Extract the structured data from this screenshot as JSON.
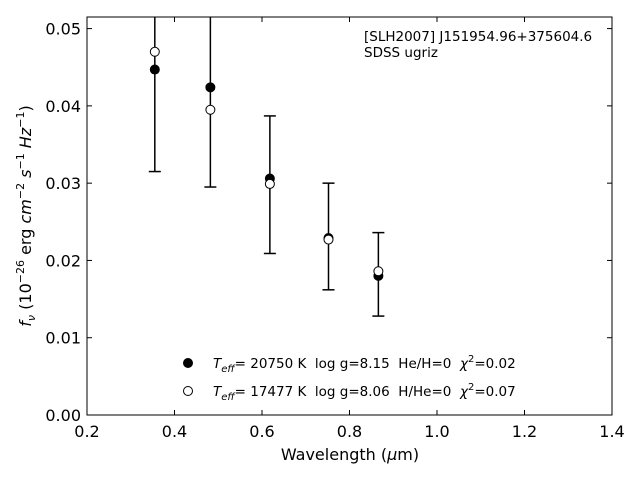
{
  "chart_data": {
    "type": "scatter",
    "title": "",
    "annotation_lines": [
      "[SLH2007] J151954.96+375604.6",
      "SDSS ugriz"
    ],
    "xlabel": {
      "prefix": "Wavelength (",
      "mu": "μ",
      "suffix": "m)"
    },
    "ylabel": {
      "pre": "f",
      "sub": "ν",
      "open": " (10",
      "exp1": "−26",
      "mid1": " erg ",
      "cm": "cm",
      "exp2": "−2",
      "s": " s",
      "exp3": "−1",
      "hz": " Hz",
      "exp4": "−1",
      "close": ")"
    },
    "xlim": [
      0.2,
      1.4
    ],
    "ylim": [
      0.0,
      0.0515
    ],
    "xticks": [
      "0.2",
      "0.4",
      "0.6",
      "0.8",
      "1.0",
      "1.2",
      "1.4"
    ],
    "xtick_values": [
      0.2,
      0.4,
      0.6,
      0.8,
      1.0,
      1.2,
      1.4
    ],
    "yticks": [
      "0.00",
      "0.01",
      "0.02",
      "0.03",
      "0.04",
      "0.05"
    ],
    "ytick_values": [
      0.0,
      0.01,
      0.02,
      0.03,
      0.04,
      0.05
    ],
    "grid": false,
    "legend_placement": "lower-center",
    "errorbars": [
      {
        "x": 0.355,
        "low": 0.0315,
        "high": 0.0515
      },
      {
        "x": 0.482,
        "low": 0.0295,
        "high": 0.0515
      },
      {
        "x": 0.618,
        "low": 0.0209,
        "high": 0.0387
      },
      {
        "x": 0.752,
        "low": 0.0162,
        "high": 0.03
      },
      {
        "x": 0.866,
        "low": 0.0128,
        "high": 0.0236
      }
    ],
    "series": [
      {
        "marker": "filled",
        "color": "#000000",
        "legend": {
          "t": "T",
          "sub": "eff",
          "rest": "= 20750 K  log g=8.15  He/H=0  ",
          "chi": "χ",
          "chisup": "2",
          "val": "=0.02"
        },
        "x": [
          0.355,
          0.482,
          0.618,
          0.752,
          0.866
        ],
        "y": [
          0.0447,
          0.0424,
          0.0306,
          0.0229,
          0.018
        ]
      },
      {
        "marker": "open",
        "color": "#000000",
        "legend": {
          "t": "T",
          "sub": "eff",
          "rest": "= 17477 K  log g=8.06  H/He=0  ",
          "chi": "χ",
          "chisup": "2",
          "val": "=0.07"
        },
        "x": [
          0.355,
          0.482,
          0.618,
          0.752,
          0.866
        ],
        "y": [
          0.047,
          0.0395,
          0.0299,
          0.0227,
          0.0186
        ]
      }
    ]
  }
}
